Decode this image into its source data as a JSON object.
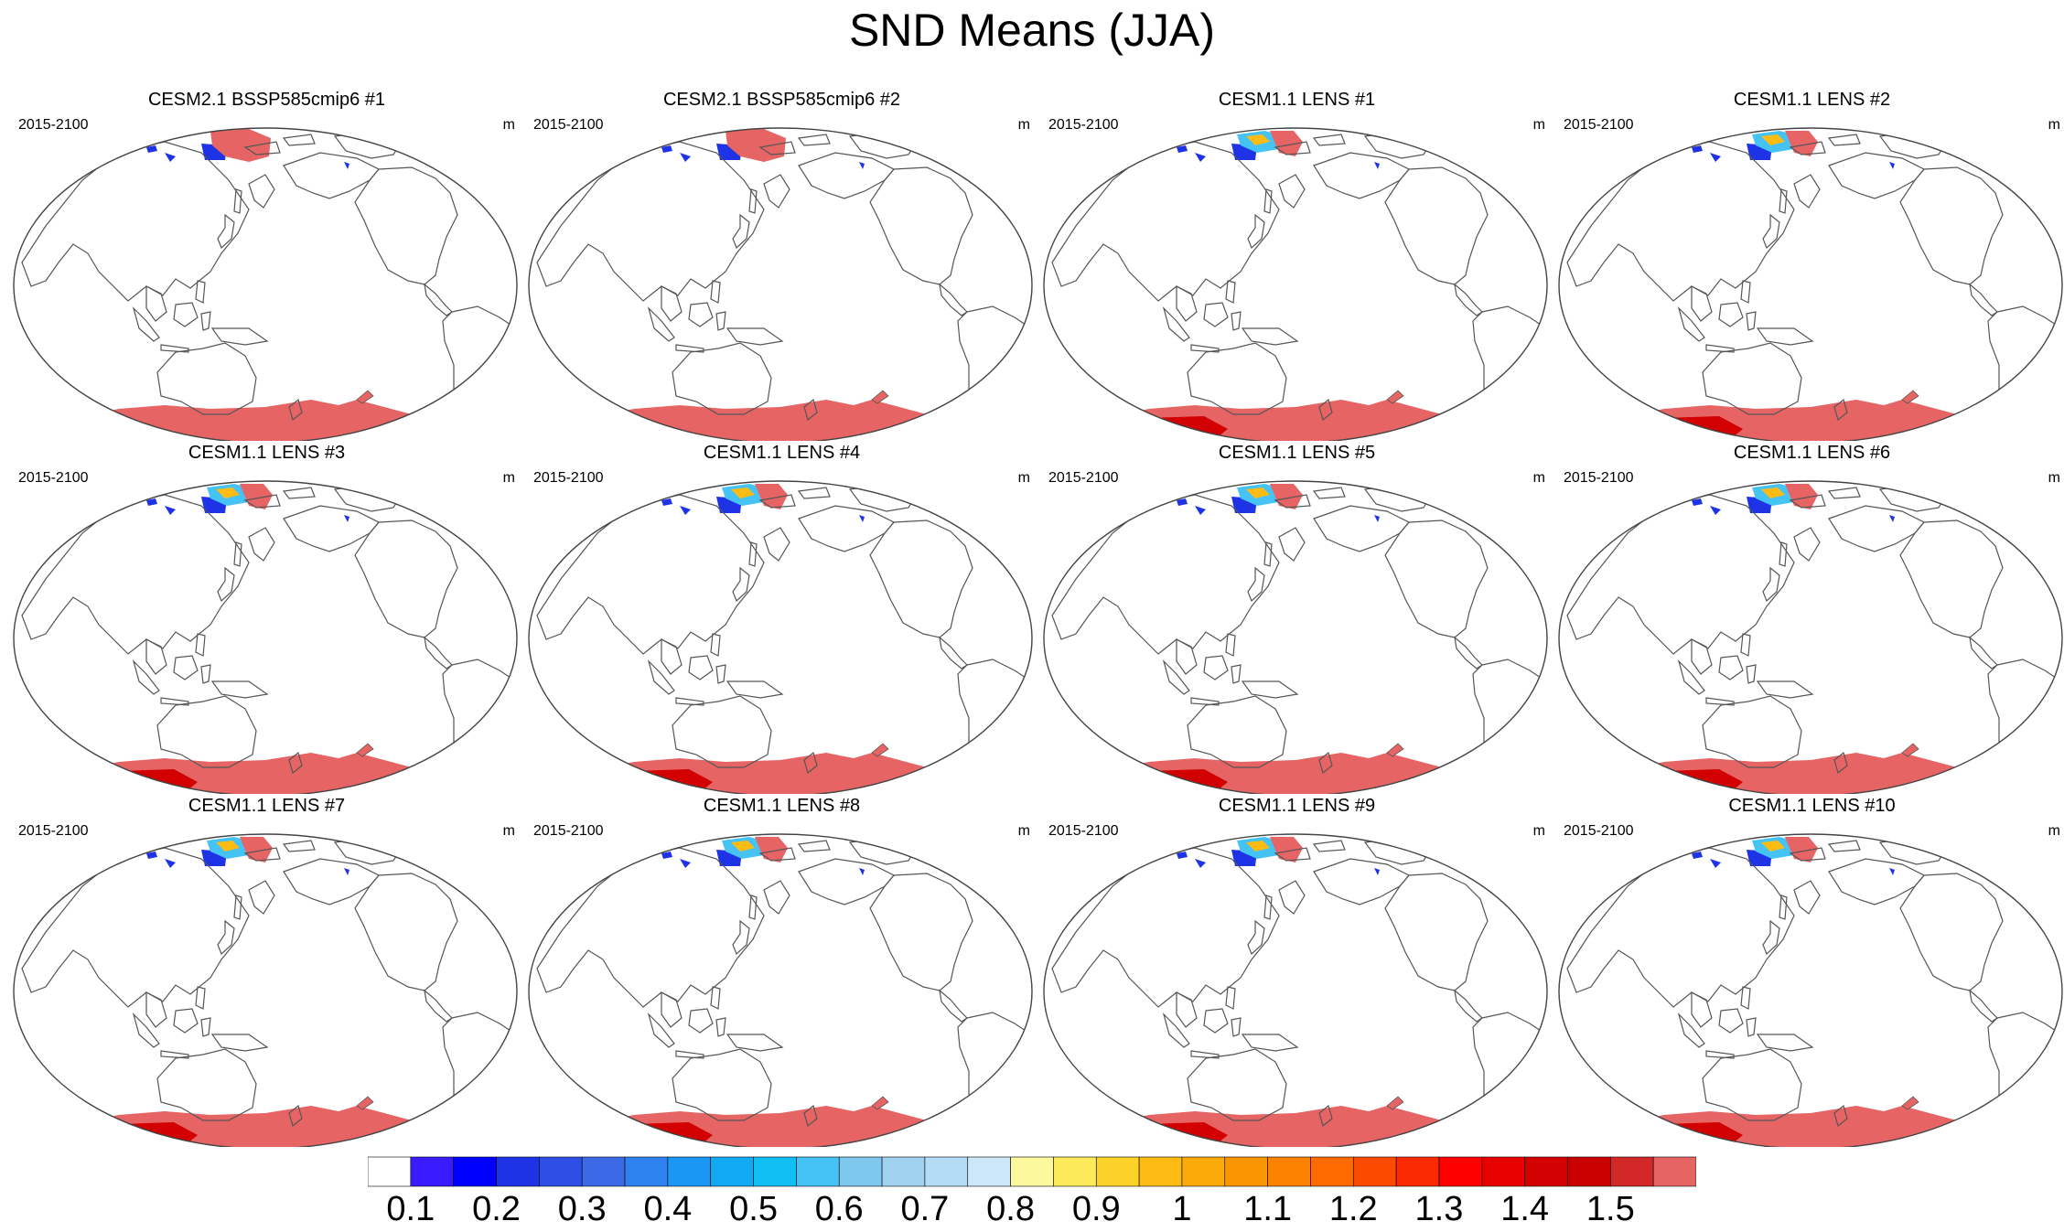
{
  "figure_title": "SND Means (JJA)",
  "panels": [
    {
      "title": "CESM2.1 BSSP585cmip6 #1",
      "period": "2015-2100",
      "units": "m",
      "variant": "cmip6"
    },
    {
      "title": "CESM2.1 BSSP585cmip6 #2",
      "period": "2015-2100",
      "units": "m",
      "variant": "cmip6"
    },
    {
      "title": "CESM1.1 LENS #1",
      "period": "2015-2100",
      "units": "m",
      "variant": "lens"
    },
    {
      "title": "CESM1.1 LENS #2",
      "period": "2015-2100",
      "units": "m",
      "variant": "lens"
    },
    {
      "title": "CESM1.1 LENS #3",
      "period": "2015-2100",
      "units": "m",
      "variant": "lens"
    },
    {
      "title": "CESM1.1 LENS #4",
      "period": "2015-2100",
      "units": "m",
      "variant": "lens"
    },
    {
      "title": "CESM1.1 LENS #5",
      "period": "2015-2100",
      "units": "m",
      "variant": "lens"
    },
    {
      "title": "CESM1.1 LENS #6",
      "period": "2015-2100",
      "units": "m",
      "variant": "lens"
    },
    {
      "title": "CESM1.1 LENS #7",
      "period": "2015-2100",
      "units": "m",
      "variant": "lens"
    },
    {
      "title": "CESM1.1 LENS #8",
      "period": "2015-2100",
      "units": "m",
      "variant": "lens"
    },
    {
      "title": "CESM1.1 LENS #9",
      "period": "2015-2100",
      "units": "m",
      "variant": "lens"
    },
    {
      "title": "CESM1.1 LENS #10",
      "period": "2015-2100",
      "units": "m",
      "variant": "lens"
    }
  ],
  "colorbar": {
    "colors": [
      "#ffffff",
      "#3a1aff",
      "#0000ff",
      "#1e32e6",
      "#2e4ee6",
      "#3c6ae6",
      "#2e82f0",
      "#1a96f5",
      "#10aaf5",
      "#10c0f5",
      "#46c3f5",
      "#7ec8ee",
      "#a0d2f0",
      "#b4dcf5",
      "#cce8f8",
      "#fcf89e",
      "#fcea5a",
      "#fcd228",
      "#fcbc14",
      "#fcaa0a",
      "#fc9600",
      "#fc8200",
      "#fc6a00",
      "#fc4a00",
      "#fc2a00",
      "#ff0000",
      "#e60000",
      "#d20000",
      "#c80000",
      "#d22828",
      "#e66464"
    ],
    "labels": [
      "0.1",
      "0.2",
      "0.3",
      "0.4",
      "0.5",
      "0.6",
      "0.7",
      "0.8",
      "0.9",
      "1",
      "1.1",
      "1.2",
      "1.3",
      "1.4",
      "1.5"
    ]
  },
  "colors": {
    "coastline": "#555555",
    "antarctica_fill": "#e66464",
    "antarctica_deep": "#d20000",
    "low_snow": "#1e32e6",
    "greenland_core": "#e66464"
  }
}
